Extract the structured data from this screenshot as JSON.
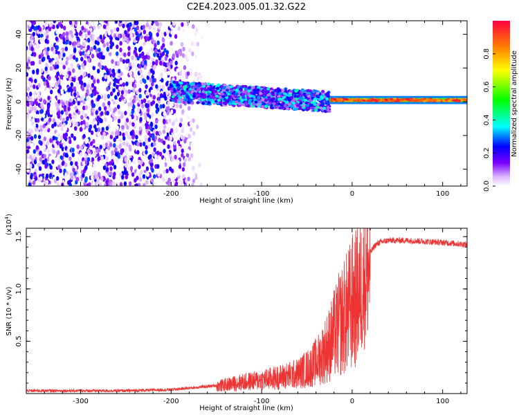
{
  "title": "C2E4.2023.005.01.32.G22",
  "chart_data": [
    {
      "type": "heatmap",
      "title": "C2E4.2023.005.01.32.G22",
      "xlabel": "Height of straight line (km)",
      "ylabel": "Frequency (Hz)",
      "xlim": [
        -360,
        127
      ],
      "ylim": [
        -50,
        48
      ],
      "xticks": [
        -300,
        -200,
        -100,
        0,
        100
      ],
      "yticks": [
        -40,
        -20,
        0,
        20,
        40
      ],
      "grid": false,
      "colorbar": {
        "label": "Normalized spectral amplitude",
        "range": [
          0,
          1
        ],
        "ticks": [
          0.0,
          0.2,
          0.4,
          0.6,
          0.8
        ],
        "tick_labels": [
          "0.0",
          "0.2",
          "0.4",
          "0.6",
          "0.8"
        ],
        "colormap": [
          "#ffffff",
          "#7b00ff",
          "#0000ff",
          "#00ffff",
          "#00ff00",
          "#ffff00",
          "#ff8000",
          "#ff0040"
        ]
      },
      "regions": [
        {
          "x_range": [
            -360,
            -200
          ],
          "freq_range": [
            -50,
            48
          ],
          "amplitude": 0.1
        },
        {
          "x_range": [
            -200,
            -25
          ],
          "freq_center_start": 6,
          "freq_center_end": 0,
          "half_width": 6,
          "amplitude": 0.25
        },
        {
          "x_range": [
            -25,
            127
          ],
          "freq_center": 1,
          "half_width": 1.5,
          "amplitude": 0.9
        }
      ]
    },
    {
      "type": "line",
      "xlabel": "Height of straight line (km)",
      "ylabel": "SNR (10 * v/v)",
      "yscale_label": "(x10",
      "yscale_exp": "4",
      "yscale_close": ")",
      "xlim": [
        -360,
        127
      ],
      "ylim": [
        0,
        1.58
      ],
      "xticks": [
        -300,
        -200,
        -100,
        0,
        100
      ],
      "yticks": [
        0.5,
        1.0,
        1.5
      ],
      "ytick_labels": [
        "0.5",
        "1.0",
        "1.5"
      ],
      "grid": false,
      "series": [
        {
          "color": "#ee3333",
          "x": [
            -360,
            -300,
            -250,
            -200,
            -175,
            -150,
            -125,
            -100,
            -80,
            -60,
            -45,
            -35,
            -25,
            -15,
            -5,
            0,
            5,
            10,
            15,
            20,
            25,
            30,
            40,
            60,
            80,
            100,
            127
          ],
          "y": [
            0.03,
            0.03,
            0.03,
            0.04,
            0.06,
            0.08,
            0.12,
            0.15,
            0.18,
            0.22,
            0.3,
            0.4,
            0.55,
            0.75,
            0.9,
            1.0,
            1.05,
            1.15,
            1.25,
            1.35,
            1.42,
            1.45,
            1.47,
            1.47,
            1.46,
            1.45,
            1.43
          ]
        }
      ]
    }
  ]
}
